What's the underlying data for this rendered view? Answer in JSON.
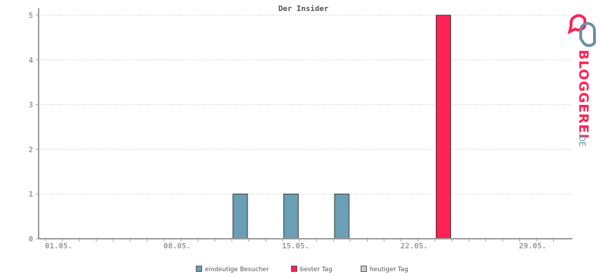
{
  "chart_data": {
    "type": "bar",
    "title": "Der Insider",
    "xlabel": "",
    "ylabel": "",
    "ylim": [
      0,
      5
    ],
    "yticks": [
      "0",
      "1",
      "2",
      "3",
      "4",
      "5"
    ],
    "xticks": [
      "01.05.",
      "08.05.",
      "15.05.",
      "22.05.",
      "29.05."
    ],
    "days_count": 31,
    "grid": true,
    "legend_position": "bottom",
    "series": [
      {
        "name": "eindeutige Besucher",
        "color": "#6a9fb5",
        "points": [
          {
            "x": "12.05.",
            "y": 1
          },
          {
            "x": "15.05.",
            "y": 1
          },
          {
            "x": "18.05.",
            "y": 1
          }
        ]
      },
      {
        "name": "bester Tag",
        "color": "#ff2255",
        "points": [
          {
            "x": "24.05.",
            "y": 5
          }
        ]
      },
      {
        "name": "heutiger Tag",
        "color": "#cccccc",
        "points": []
      }
    ]
  },
  "logo": {
    "text": "BLOGGEREI",
    "suffix": ".DE"
  },
  "colors": {
    "accent": "#ff2255",
    "visitors": "#6a9fb5",
    "today": "#cccccc",
    "axis": "#999999"
  }
}
